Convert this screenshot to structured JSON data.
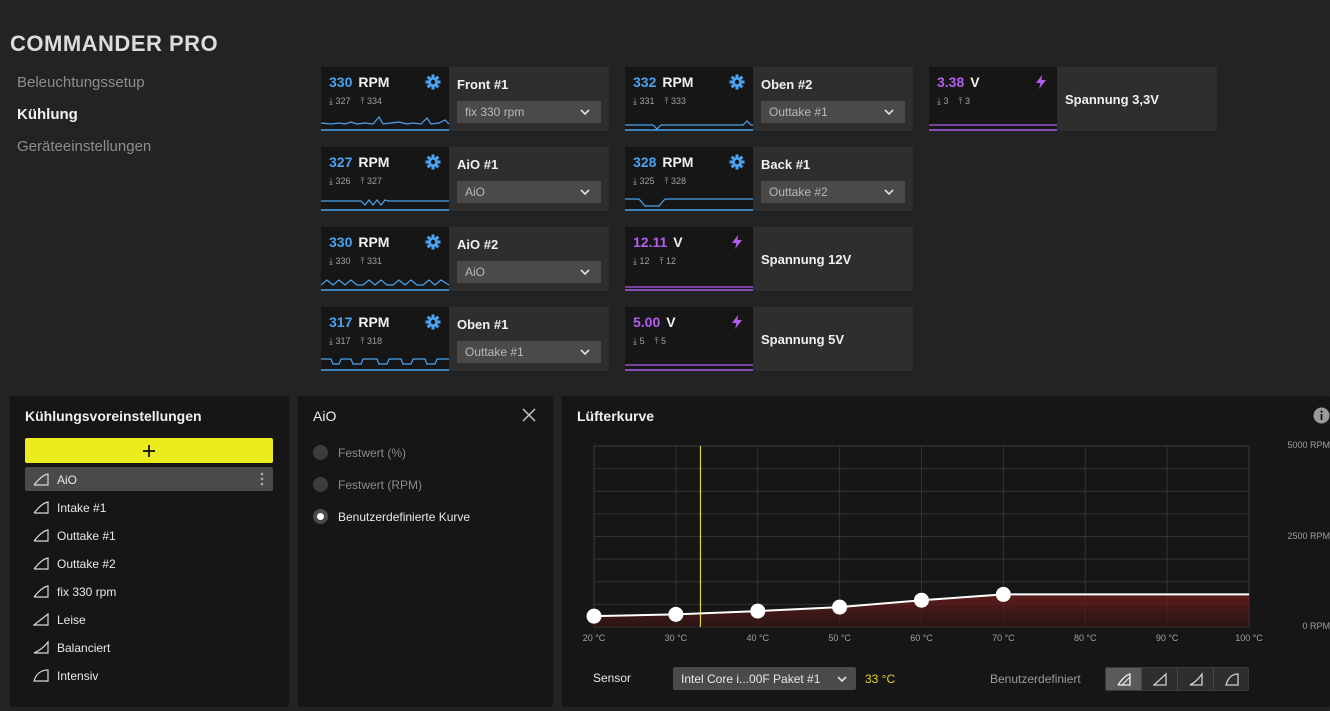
{
  "app": {
    "title": "COMMANDER PRO"
  },
  "nav": [
    {
      "label": "Beleuchtungssetup",
      "active": false
    },
    {
      "label": "Kühlung",
      "active": true
    },
    {
      "label": "Geräteeinstellungen",
      "active": false
    }
  ],
  "cards": {
    "front1": {
      "value": "330",
      "unit": "RPM",
      "min": "327",
      "max": "334",
      "name": "Front #1",
      "select": "fix 330 rpm"
    },
    "aio1": {
      "value": "327",
      "unit": "RPM",
      "min": "326",
      "max": "327",
      "name": "AiO #1",
      "select": "AiO"
    },
    "aio2": {
      "value": "330",
      "unit": "RPM",
      "min": "330",
      "max": "331",
      "name": "AiO #2",
      "select": "AiO"
    },
    "oben1": {
      "value": "317",
      "unit": "RPM",
      "min": "317",
      "max": "318",
      "name": "Oben #1",
      "select": "Outtake #1"
    },
    "oben2": {
      "value": "332",
      "unit": "RPM",
      "min": "331",
      "max": "333",
      "name": "Oben #2",
      "select": "Outtake #1"
    },
    "back1": {
      "value": "328",
      "unit": "RPM",
      "min": "325",
      "max": "328",
      "name": "Back #1",
      "select": "Outtake #2"
    },
    "v12": {
      "value": "12.11",
      "unit": "V",
      "min": "12",
      "max": "12",
      "name": "Spannung 12V"
    },
    "v5": {
      "value": "5.00",
      "unit": "V",
      "min": "5",
      "max": "5",
      "name": "Spannung 5V"
    },
    "v33": {
      "value": "3.38",
      "unit": "V",
      "min": "3",
      "max": "3",
      "name": "Spannung 3,3V"
    }
  },
  "presets": {
    "title": "Kühlungsvoreinstellungen",
    "items": [
      "AiO",
      "Intake #1",
      "Outtake #1",
      "Outtake #2",
      "fix 330 rpm",
      "Leise",
      "Balanciert",
      "Intensiv"
    ]
  },
  "aio_panel": {
    "title": "AiO",
    "options": [
      "Festwert (%)",
      "Festwert (RPM)",
      "Benutzerdefinierte Kurve"
    ],
    "selected": 2
  },
  "curve_panel": {
    "title": "Lüfterkurve",
    "sensor_label": "Sensor",
    "sensor_value": "Intel Core i...00F Paket #1",
    "sensor_temp": "33 °C",
    "mode_label": "Benutzerdefiniert"
  },
  "chart_data": {
    "type": "line",
    "x": [
      20,
      30,
      40,
      50,
      60,
      70,
      100
    ],
    "y": [
      300,
      350,
      440,
      550,
      740,
      900,
      900
    ],
    "x_ticks": [
      "20 °C",
      "30 °C",
      "40 °C",
      "50 °C",
      "60 °C",
      "70 °C",
      "80 °C",
      "90 °C",
      "100 °C"
    ],
    "y_ticks": [
      "5000 RPM",
      "2500 RPM",
      "0 RPM"
    ],
    "xlim": [
      20,
      100
    ],
    "ylim": [
      0,
      5000
    ],
    "marker_x": 33,
    "grid": true,
    "accent": "#e6d22c",
    "fill_color": "#6b1d1d"
  },
  "colors": {
    "rpm": "#4aa3f0",
    "volt": "#b25ef0",
    "accent_button": "#ecec1c"
  }
}
